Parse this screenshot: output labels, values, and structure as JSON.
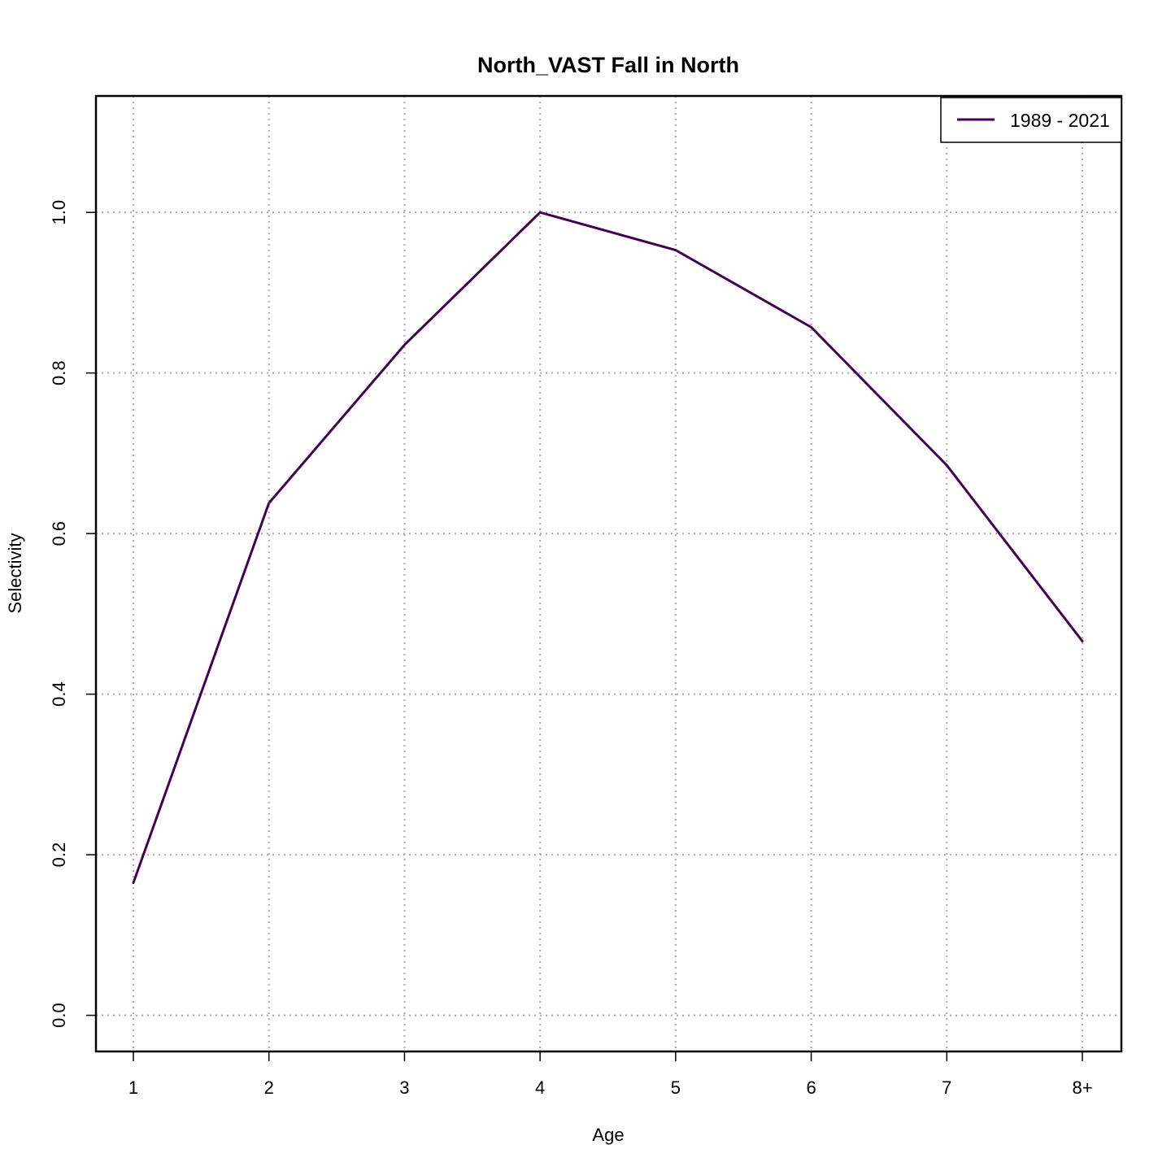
{
  "chart_data": {
    "type": "line",
    "title": "North_VAST Fall in North",
    "xlabel": "Age",
    "ylabel": "Selectivity",
    "categories": [
      "1",
      "2",
      "3",
      "4",
      "5",
      "6",
      "7",
      "8+"
    ],
    "ylim": [
      -0.045,
      1.145
    ],
    "yticks": [
      "0.0",
      "0.2",
      "0.4",
      "0.6",
      "0.8",
      "1.0"
    ],
    "grid": true,
    "legend_position": "top-right",
    "series": [
      {
        "name": "1989 - 2021",
        "color": "#440154",
        "values": [
          0.165,
          0.638,
          0.835,
          1.0,
          0.953,
          0.857,
          0.685,
          0.466
        ]
      }
    ]
  }
}
